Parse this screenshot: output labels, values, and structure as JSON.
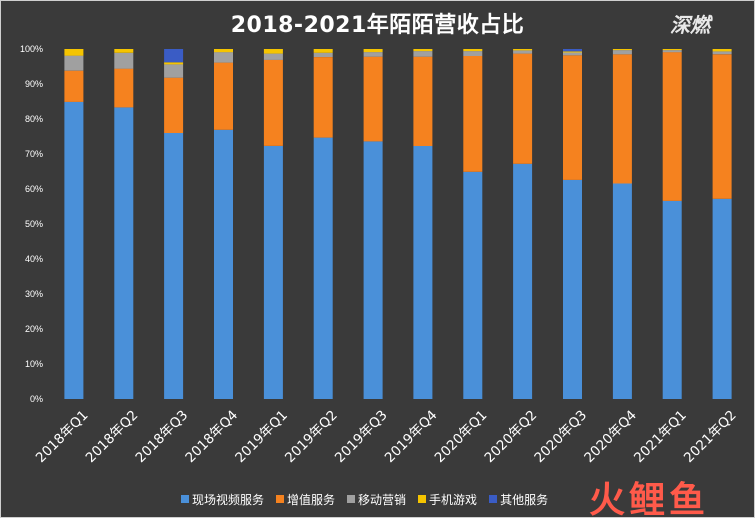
{
  "chart_data": {
    "type": "bar",
    "stacked": true,
    "percent": true,
    "title": "2018-2021年陌陌营收占比",
    "ylim": [
      0,
      100
    ],
    "y_ticks": [
      "0%",
      "10%",
      "20%",
      "30%",
      "40%",
      "50%",
      "60%",
      "70%",
      "80%",
      "90%",
      "100%"
    ],
    "grid": false,
    "legend_position": "bottom",
    "categories": [
      "2018年Q1",
      "2018年Q2",
      "2018年Q3",
      "2018年Q4",
      "2019年Q1",
      "2019年Q2",
      "2019年Q3",
      "2019年Q4",
      "2020年Q1",
      "2020年Q2",
      "2020年Q3",
      "2020年Q4",
      "2021年Q1",
      "2021年Q2"
    ],
    "series": [
      {
        "name": "现场视频服务",
        "color": "#4a90d9",
        "values": [
          84.9,
          83.3,
          76.0,
          76.9,
          72.3,
          74.7,
          73.6,
          72.3,
          64.9,
          67.2,
          62.6,
          61.6,
          56.6,
          57.2
        ]
      },
      {
        "name": "增值服务",
        "color": "#f5821f",
        "values": [
          8.9,
          11.1,
          15.8,
          19.2,
          24.6,
          23.0,
          24.2,
          25.5,
          33.1,
          31.5,
          35.6,
          36.9,
          42.5,
          41.3
        ]
      },
      {
        "name": "移动营销",
        "color": "#a0a0a0",
        "values": [
          4.3,
          4.5,
          3.8,
          3.0,
          1.8,
          1.2,
          1.3,
          1.6,
          1.4,
          0.9,
          0.8,
          1.2,
          0.6,
          0.8
        ]
      },
      {
        "name": "手机游戏",
        "color": "#f5c400",
        "values": [
          1.9,
          1.1,
          0.6,
          0.9,
          1.3,
          1.1,
          0.9,
          0.6,
          0.6,
          0.4,
          0.3,
          0.3,
          0.3,
          0.7
        ]
      },
      {
        "name": "其他服务",
        "color": "#3a5cc5",
        "values": [
          0.0,
          0.0,
          3.8,
          0.0,
          0.0,
          0.0,
          0.0,
          0.0,
          0.0,
          0.0,
          0.7,
          0.0,
          0.0,
          0.0
        ]
      }
    ]
  },
  "watermark_top": "深燃",
  "watermark_bottom": "火鲤鱼"
}
